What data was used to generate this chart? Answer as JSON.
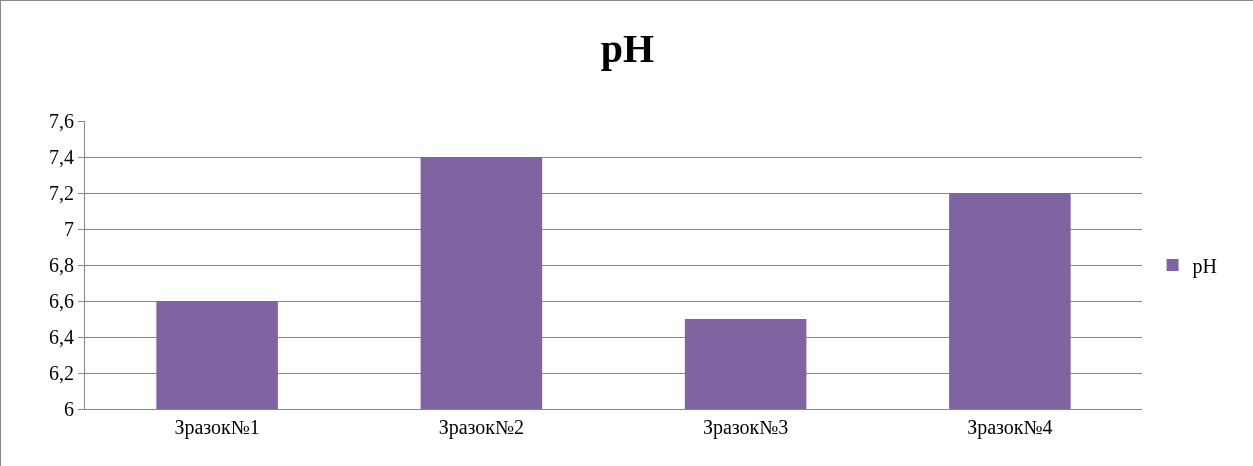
{
  "chart_data": {
    "type": "bar",
    "title": "pH",
    "categories": [
      "Зразок№1",
      "Зразок№2",
      "Зразок№3",
      "Зразок№4"
    ],
    "series": [
      {
        "name": "pH",
        "color": "#8064a2",
        "values": [
          6.6,
          7.4,
          6.5,
          7.2
        ]
      }
    ],
    "ylim": [
      6,
      7.6
    ],
    "yticks": [
      6,
      {
        "value": 6.2,
        "label": "6,2"
      },
      {
        "value": 6.4,
        "label": "6,4"
      },
      {
        "value": 6.6,
        "label": "6,6"
      },
      {
        "value": 6.8,
        "label": "6,8"
      },
      7,
      {
        "value": 7.2,
        "label": "7,2"
      },
      {
        "value": 7.4,
        "label": "7,4"
      },
      {
        "value": 7.6,
        "label": "7,6"
      }
    ],
    "grid": "y",
    "legend": "right"
  }
}
